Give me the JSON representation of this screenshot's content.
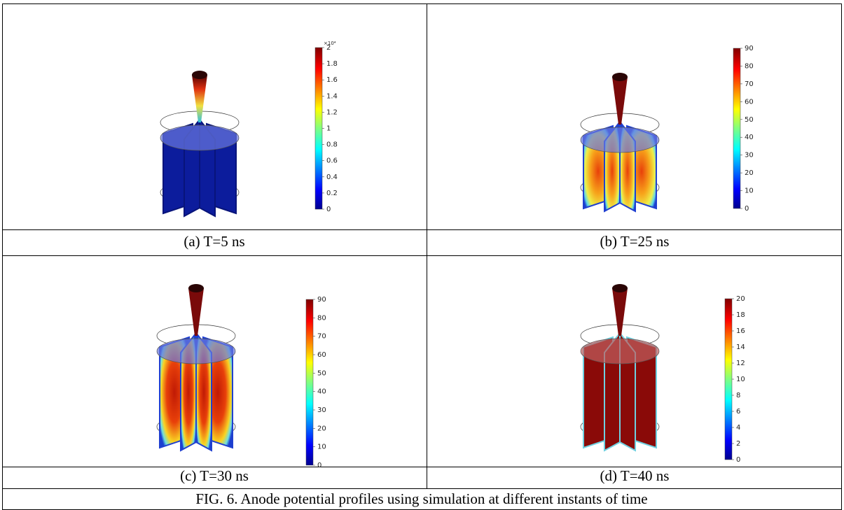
{
  "figure": {
    "caption": "FIG. 6. Anode potential profiles using simulation at different instants of time",
    "panels": [
      {
        "caption": "(a)  T=5 ns",
        "colorbar_multiplier": "×10⁴",
        "colorbar_ticks": [
          0,
          0.2,
          0.4,
          0.6,
          0.8,
          1,
          1.2,
          1.4,
          1.6,
          1.8,
          2
        ]
      },
      {
        "caption": "(b)  T=25 ns",
        "colorbar_ticks": [
          0,
          10,
          20,
          30,
          40,
          50,
          60,
          70,
          80,
          90
        ]
      },
      {
        "caption": "(c) T=30 ns",
        "colorbar_ticks": [
          0,
          10,
          20,
          30,
          40,
          50,
          60,
          70,
          80,
          90
        ]
      },
      {
        "caption": "(d) T=40 ns",
        "colorbar_ticks": [
          0,
          2,
          4,
          6,
          8,
          10,
          12,
          14,
          16,
          18,
          20
        ]
      }
    ]
  }
}
